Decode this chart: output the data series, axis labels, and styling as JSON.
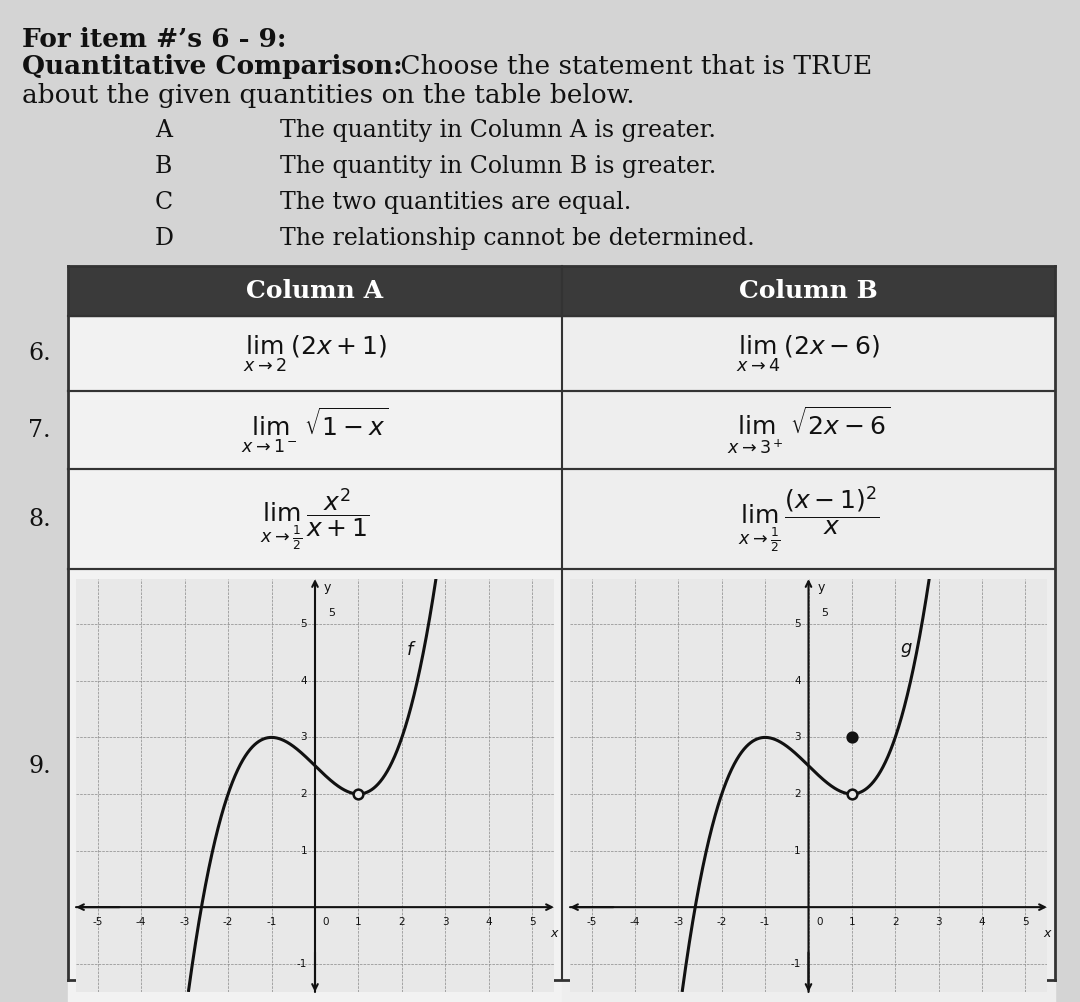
{
  "title_line1": "For item #’s 6 - 9:",
  "title_bold": "Quantitative Comparison:",
  "title_rest": " Choose the statement that is TRUE",
  "title_line3": "about the given quantities on the table below.",
  "options": [
    [
      "A",
      "The quantity in Column A is greater."
    ],
    [
      "B",
      "The quantity in Column B is greater."
    ],
    [
      "C",
      "The two quantities are equal."
    ],
    [
      "D",
      "The relationship cannot be determined."
    ]
  ],
  "header_col_a": "Column A",
  "header_col_b": "Column B",
  "page_bg": "#d4d4d4",
  "header_bg": "#3a3a3a",
  "header_fg": "#ffffff",
  "row_bg_l": "#f0f0f0",
  "row_bg_r": "#ebebeb",
  "border_color": "#333333",
  "item_labels": [
    "6.",
    "7.",
    "8.",
    "9."
  ],
  "graph_bg": "#e8e8e8",
  "graph_grid": "#999999"
}
